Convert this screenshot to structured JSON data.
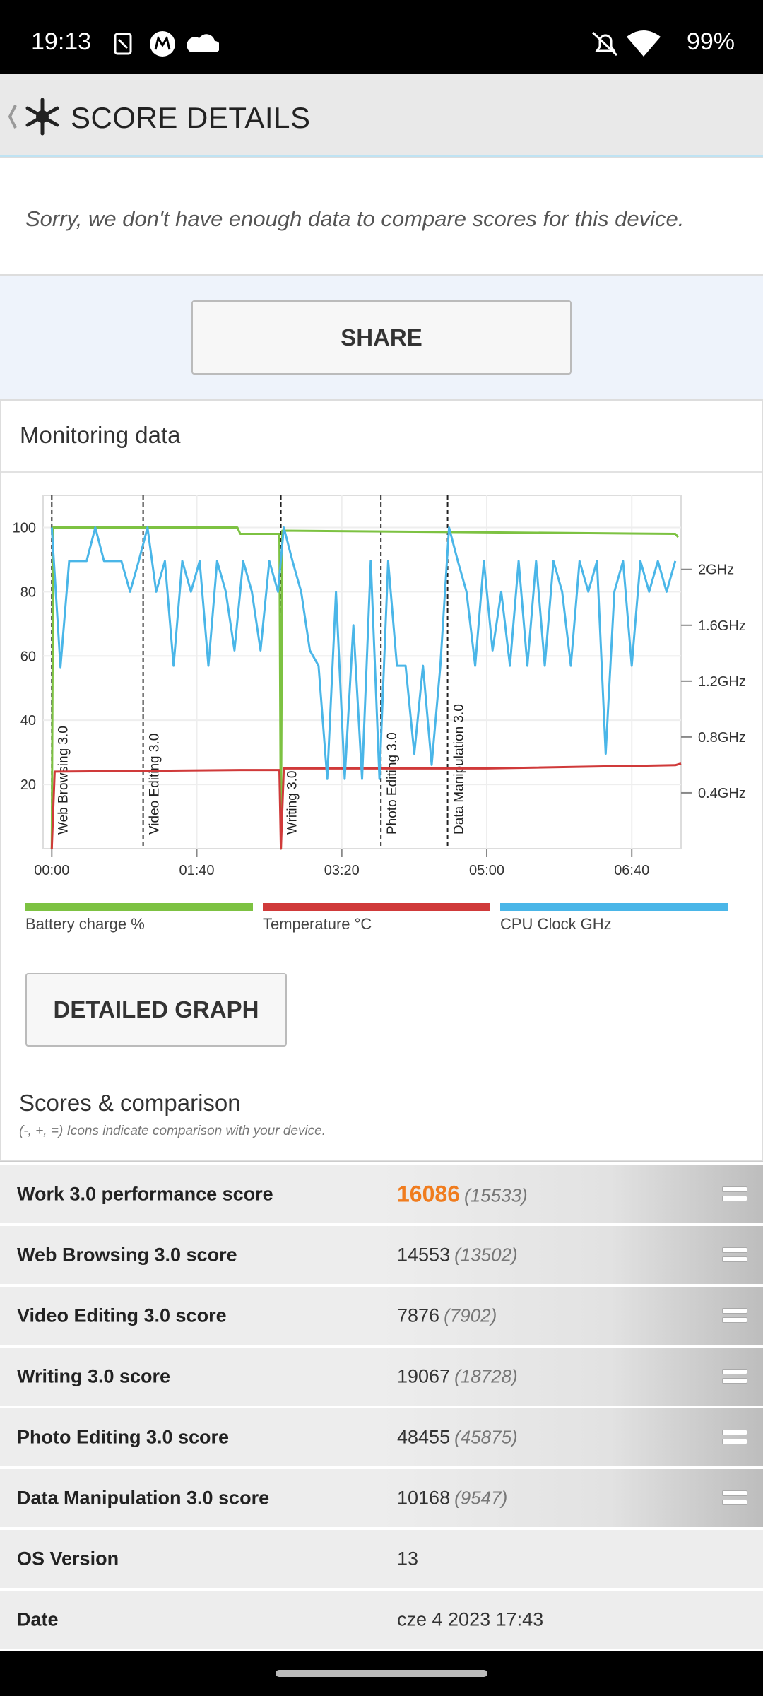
{
  "status_bar": {
    "time": "19:13",
    "battery": "99%"
  },
  "header": {
    "title": "SCORE DETAILS"
  },
  "notice": "Sorry, we don't have enough data to compare scores for this device.",
  "share_button": "SHARE",
  "monitoring": {
    "title": "Monitoring data",
    "chart": {
      "type": "line",
      "xlim": [
        -6,
        434
      ],
      "xticks": [
        {
          "value": 0,
          "label": "00:00"
        },
        {
          "value": 100,
          "label": "01:40"
        },
        {
          "value": 200,
          "label": "03:20"
        },
        {
          "value": 300,
          "label": "05:00"
        },
        {
          "value": 400,
          "label": "06:40"
        }
      ],
      "ylim": [
        0,
        110
      ],
      "yticks": [
        20,
        40,
        60,
        80,
        100
      ],
      "y2lim": [
        0,
        2.53
      ],
      "y2ticks": [
        {
          "value": 0.4,
          "label": "0.4GHz"
        },
        {
          "value": 0.8,
          "label": "0.8GHz"
        },
        {
          "value": 1.2,
          "label": "1.2GHz"
        },
        {
          "value": 1.6,
          "label": "1.6GHz"
        },
        {
          "value": 2,
          "label": "2GHz"
        }
      ],
      "grid": true,
      "markers": [
        {
          "x": 0,
          "label": "Web Browsing 3.0"
        },
        {
          "x": 63,
          "label": "Video Editing 3.0"
        },
        {
          "x": 158,
          "label": "Writing 3.0"
        },
        {
          "x": 227,
          "label": "Photo Editing 3.0"
        },
        {
          "x": 273,
          "label": "Data Manipulation 3.0"
        }
      ],
      "series": [
        {
          "name": "Battery charge %",
          "color": "#7dc242",
          "axis": "y",
          "x": [
            0,
            1,
            128,
            130,
            157,
            158,
            159,
            430,
            432
          ],
          "values": [
            0,
            100,
            100,
            98,
            98,
            0,
            99,
            98,
            97
          ]
        },
        {
          "name": "Temperature °C",
          "color": "#d03a3a",
          "axis": "y",
          "x": [
            0,
            2,
            130,
            157,
            158,
            160,
            300,
            430,
            434
          ],
          "values": [
            0,
            24,
            24.5,
            24.5,
            0,
            25,
            25,
            26,
            26.5
          ]
        },
        {
          "name": "CPU Clock GHz",
          "color": "#4ab6e8",
          "axis": "y2",
          "x": [
            0,
            6,
            12,
            18,
            24,
            30,
            36,
            42,
            48,
            54,
            60,
            66,
            72,
            78,
            84,
            90,
            96,
            102,
            108,
            114,
            120,
            126,
            132,
            138,
            144,
            150,
            156,
            160,
            166,
            172,
            178,
            184,
            190,
            196,
            202,
            208,
            214,
            220,
            226,
            232,
            238,
            244,
            250,
            256,
            262,
            268,
            274,
            280,
            286,
            292,
            298,
            304,
            310,
            316,
            322,
            328,
            334,
            340,
            346,
            352,
            358,
            364,
            370,
            376,
            382,
            388,
            394,
            400,
            406,
            412,
            418,
            424,
            430
          ],
          "values": [
            2.3,
            1.3,
            2.06,
            2.06,
            2.06,
            2.3,
            2.06,
            2.06,
            2.06,
            1.84,
            2.06,
            2.3,
            1.84,
            2.06,
            1.31,
            2.06,
            1.84,
            2.06,
            1.31,
            2.06,
            1.84,
            1.42,
            2.06,
            1.84,
            1.42,
            2.06,
            1.84,
            2.3,
            2.06,
            1.84,
            1.42,
            1.31,
            0.5,
            1.84,
            0.5,
            1.6,
            0.5,
            2.06,
            0.5,
            2.06,
            1.31,
            1.31,
            0.68,
            1.31,
            0.6,
            1.31,
            2.3,
            2.06,
            1.84,
            1.31,
            2.06,
            1.42,
            1.84,
            1.31,
            2.06,
            1.31,
            2.06,
            1.31,
            2.06,
            1.84,
            1.31,
            2.06,
            1.84,
            2.06,
            0.68,
            1.84,
            2.06,
            1.31,
            2.06,
            1.84,
            2.06,
            1.84,
            2.06
          ]
        }
      ]
    }
  },
  "detailed_graph_button": "DETAILED GRAPH",
  "scores": {
    "title": "Scores & comparison",
    "subtitle": "(-, +, =) Icons indicate comparison with your device.",
    "rows": [
      {
        "label": "Work 3.0 performance score",
        "score": "16086",
        "reference": "(15533)"
      },
      {
        "label": "Web Browsing 3.0 score",
        "score": "14553",
        "reference": "(13502)"
      },
      {
        "label": "Video Editing 3.0 score",
        "score": "7876",
        "reference": "(7902)"
      },
      {
        "label": "Writing 3.0 score",
        "score": "19067",
        "reference": "(18728)"
      },
      {
        "label": "Photo Editing 3.0 score",
        "score": "48455",
        "reference": "(45875)"
      },
      {
        "label": "Data Manipulation 3.0 score",
        "score": "10168",
        "reference": "(9547)"
      },
      {
        "label": "OS Version",
        "score": "13"
      },
      {
        "label": "Date",
        "score": "cze 4 2023 17:43"
      }
    ]
  }
}
